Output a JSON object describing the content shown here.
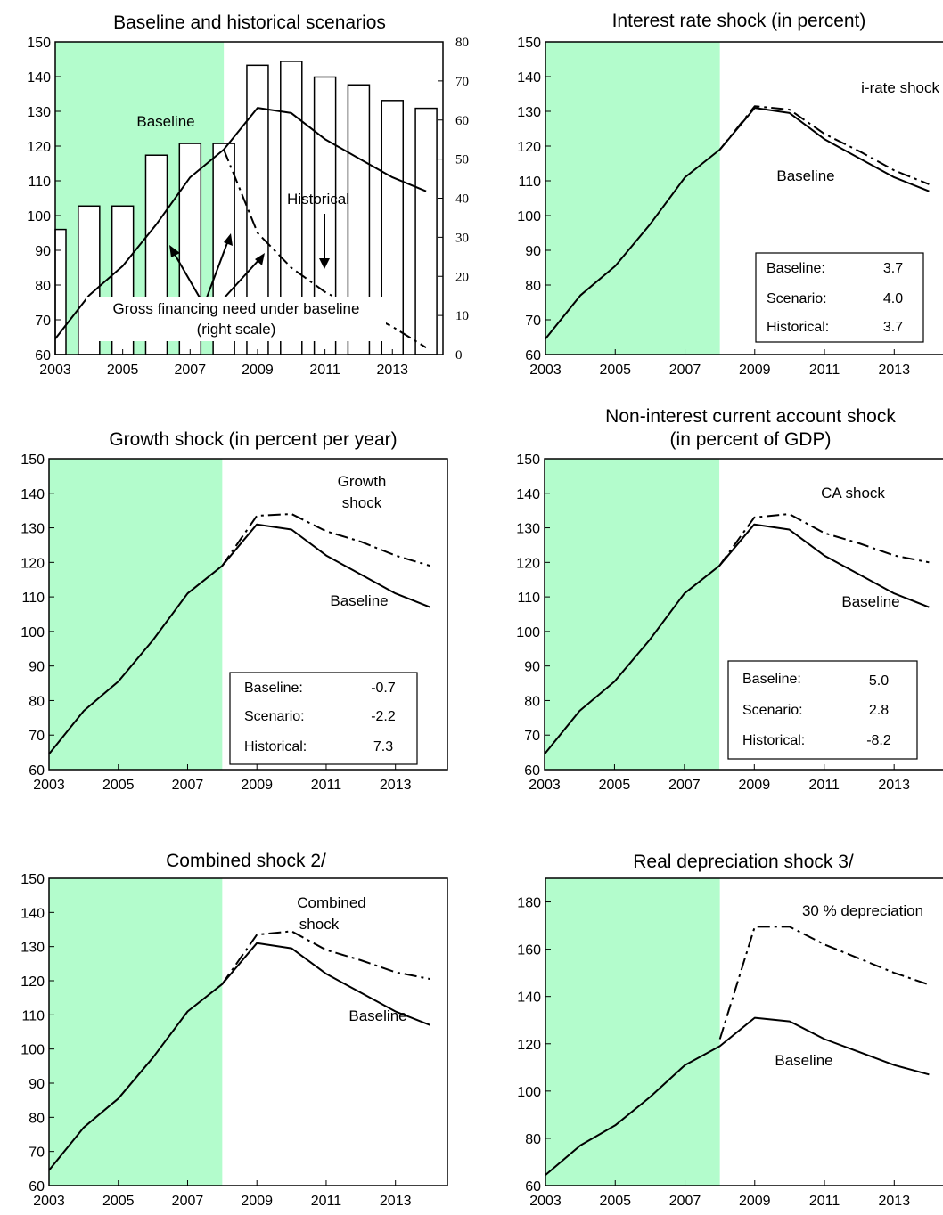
{
  "chart_data": [
    {
      "type": "line",
      "title": "Baseline and historical scenarios",
      "x": [
        2003,
        2004,
        2005,
        2006,
        2007,
        2008,
        2009,
        2010,
        2011,
        2012,
        2013,
        2014
      ],
      "xticks": [
        "2003",
        "2005",
        "2007",
        "2009",
        "2011",
        "2013"
      ],
      "ylim": [
        60,
        150
      ],
      "yticks": [
        "60",
        "70",
        "80",
        "90",
        "100",
        "110",
        "120",
        "130",
        "140",
        "150"
      ],
      "y2lim": [
        0,
        80
      ],
      "y2ticks": [
        "0",
        "10",
        "20",
        "30",
        "40",
        "50",
        "60",
        "70",
        "80"
      ],
      "shaded_until": 2008,
      "bars": {
        "x": [
          2003,
          2004,
          2005,
          2006,
          2007,
          2008,
          2009,
          2010,
          2011,
          2012,
          2013,
          2014
        ],
        "values": [
          32,
          38,
          38,
          51,
          54,
          54,
          74,
          75,
          71,
          69,
          65,
          63
        ]
      },
      "series": [
        {
          "style": "solid",
          "x": [
            2003,
            2004,
            2005,
            2006,
            2007,
            2008,
            2009,
            2010,
            2011,
            2012,
            2013,
            2014
          ],
          "values": [
            64.5,
            77,
            85.5,
            97.5,
            111,
            119,
            131,
            129.5,
            122,
            116.5,
            111,
            107
          ]
        },
        {
          "style": "dashdot",
          "x": [
            2008,
            2009,
            2010,
            2011,
            2012,
            2013,
            2014
          ],
          "values": [
            119,
            95,
            85,
            78,
            73,
            68,
            62
          ]
        }
      ],
      "annotations": {
        "baseline": "Baseline",
        "historical": "Historical",
        "gfn_line1": "Gross financing need under baseline",
        "gfn_line2": "(right scale)"
      }
    },
    {
      "type": "line",
      "title": "Interest rate shock (in percent)",
      "x": [
        2003,
        2004,
        2005,
        2006,
        2007,
        2008,
        2009,
        2010,
        2011,
        2012,
        2013,
        2014
      ],
      "xticks": [
        "2003",
        "2005",
        "2007",
        "2009",
        "2011",
        "2013"
      ],
      "ylim": [
        60,
        150
      ],
      "yticks": [
        "60",
        "70",
        "80",
        "90",
        "100",
        "110",
        "120",
        "130",
        "140",
        "150"
      ],
      "shaded_until": 2008,
      "series": [
        {
          "style": "solid",
          "x": [
            2003,
            2004,
            2005,
            2006,
            2007,
            2008,
            2009,
            2010,
            2011,
            2012,
            2013,
            2014
          ],
          "values": [
            64.5,
            77,
            85.5,
            97.5,
            111,
            119,
            131,
            129.5,
            122,
            116.5,
            111,
            107
          ]
        },
        {
          "style": "dashdot",
          "x": [
            2008,
            2009,
            2010,
            2011,
            2012,
            2013,
            2014
          ],
          "values": [
            119,
            131.5,
            130.5,
            123.5,
            118.5,
            113,
            109
          ]
        }
      ],
      "annotations": {
        "shock": "i-rate shock",
        "baseline": "Baseline"
      },
      "box": {
        "rows": [
          {
            "label": "Baseline:",
            "value": "3.7"
          },
          {
            "label": "Scenario:",
            "value": "4.0"
          },
          {
            "label": "Historical:",
            "value": "3.7"
          }
        ]
      }
    },
    {
      "type": "line",
      "title": "Growth shock (in percent per year)",
      "x": [
        2003,
        2004,
        2005,
        2006,
        2007,
        2008,
        2009,
        2010,
        2011,
        2012,
        2013,
        2014
      ],
      "xticks": [
        "2003",
        "2005",
        "2007",
        "2009",
        "2011",
        "2013"
      ],
      "ylim": [
        60,
        150
      ],
      "yticks": [
        "60",
        "70",
        "80",
        "90",
        "100",
        "110",
        "120",
        "130",
        "140",
        "150"
      ],
      "shaded_until": 2008,
      "series": [
        {
          "style": "solid",
          "x": [
            2003,
            2004,
            2005,
            2006,
            2007,
            2008,
            2009,
            2010,
            2011,
            2012,
            2013,
            2014
          ],
          "values": [
            64.5,
            77,
            85.5,
            97.5,
            111,
            119,
            131,
            129.5,
            122,
            116.5,
            111,
            107
          ]
        },
        {
          "style": "dashdot",
          "x": [
            2008,
            2009,
            2010,
            2011,
            2012,
            2013,
            2014
          ],
          "values": [
            119,
            133.5,
            134,
            129,
            126,
            122,
            119
          ]
        }
      ],
      "annotations": {
        "shock_line1": "Growth",
        "shock_line2": "shock",
        "baseline": "Baseline"
      },
      "box": {
        "rows": [
          {
            "label": "Baseline:",
            "value": "-0.7"
          },
          {
            "label": "Scenario:",
            "value": "-2.2"
          },
          {
            "label": "Historical:",
            "value": "7.3"
          }
        ]
      }
    },
    {
      "type": "line",
      "title_line1": "Non-interest current account shock",
      "title_line2": "(in percent of GDP)",
      "x": [
        2003,
        2004,
        2005,
        2006,
        2007,
        2008,
        2009,
        2010,
        2011,
        2012,
        2013,
        2014
      ],
      "xticks": [
        "2003",
        "2005",
        "2007",
        "2009",
        "2011",
        "2013"
      ],
      "ylim": [
        60,
        150
      ],
      "yticks": [
        "60",
        "70",
        "80",
        "90",
        "100",
        "110",
        "120",
        "130",
        "140",
        "150"
      ],
      "shaded_until": 2008,
      "series": [
        {
          "style": "solid",
          "x": [
            2003,
            2004,
            2005,
            2006,
            2007,
            2008,
            2009,
            2010,
            2011,
            2012,
            2013,
            2014
          ],
          "values": [
            64.5,
            77,
            85.5,
            97.5,
            111,
            119,
            131,
            129.5,
            122,
            116.5,
            111,
            107
          ]
        },
        {
          "style": "dashdot",
          "x": [
            2008,
            2009,
            2010,
            2011,
            2012,
            2013,
            2014
          ],
          "values": [
            119,
            133,
            134,
            128.5,
            125.5,
            122,
            120
          ]
        }
      ],
      "annotations": {
        "shock": "CA shock",
        "baseline": "Baseline"
      },
      "box": {
        "rows": [
          {
            "label": "Baseline:",
            "value": "5.0"
          },
          {
            "label": "Scenario:",
            "value": "2.8"
          },
          {
            "label": "Historical:",
            "value": "-8.2"
          }
        ]
      }
    },
    {
      "type": "line",
      "title": "Combined shock  2/",
      "x": [
        2003,
        2004,
        2005,
        2006,
        2007,
        2008,
        2009,
        2010,
        2011,
        2012,
        2013,
        2014
      ],
      "xticks": [
        "2003",
        "2005",
        "2007",
        "2009",
        "2011",
        "2013"
      ],
      "ylim": [
        60,
        150
      ],
      "yticks": [
        "60",
        "70",
        "80",
        "90",
        "100",
        "110",
        "120",
        "130",
        "140",
        "150"
      ],
      "shaded_until": 2008,
      "series": [
        {
          "style": "solid",
          "x": [
            2003,
            2004,
            2005,
            2006,
            2007,
            2008,
            2009,
            2010,
            2011,
            2012,
            2013,
            2014
          ],
          "values": [
            64.5,
            77,
            85.5,
            97.5,
            111,
            119,
            131,
            129.5,
            122,
            116.5,
            111,
            107
          ]
        },
        {
          "style": "dashdot",
          "x": [
            2008,
            2009,
            2010,
            2011,
            2012,
            2013,
            2014
          ],
          "values": [
            119,
            133.5,
            134.5,
            129,
            126,
            122.5,
            120.5
          ]
        }
      ],
      "annotations": {
        "shock_line1": "Combined",
        "shock_line2": "shock",
        "baseline": "Baseline"
      }
    },
    {
      "type": "line",
      "title": "Real depreciation shock  3/",
      "x": [
        2003,
        2004,
        2005,
        2006,
        2007,
        2008,
        2009,
        2010,
        2011,
        2012,
        2013,
        2014
      ],
      "xticks": [
        "2003",
        "2005",
        "2007",
        "2009",
        "2011",
        "2013"
      ],
      "ylim": [
        60,
        190
      ],
      "yticks": [
        "60",
        "80",
        "100",
        "120",
        "140",
        "160",
        "180"
      ],
      "shaded_until": 2008,
      "series": [
        {
          "style": "solid",
          "x": [
            2003,
            2004,
            2005,
            2006,
            2007,
            2008,
            2009,
            2010,
            2011,
            2012,
            2013,
            2014
          ],
          "values": [
            64.5,
            77,
            85.5,
            97.5,
            111,
            119,
            131,
            129.5,
            122,
            116.5,
            111,
            107
          ]
        },
        {
          "style": "dashdot",
          "x": [
            2008,
            2009,
            2010,
            2011,
            2012,
            2013,
            2014
          ],
          "values": [
            122,
            169.5,
            169.5,
            162,
            156,
            150,
            145
          ]
        }
      ],
      "annotations": {
        "shock": "30 % depreciation",
        "baseline": "Baseline"
      }
    }
  ]
}
